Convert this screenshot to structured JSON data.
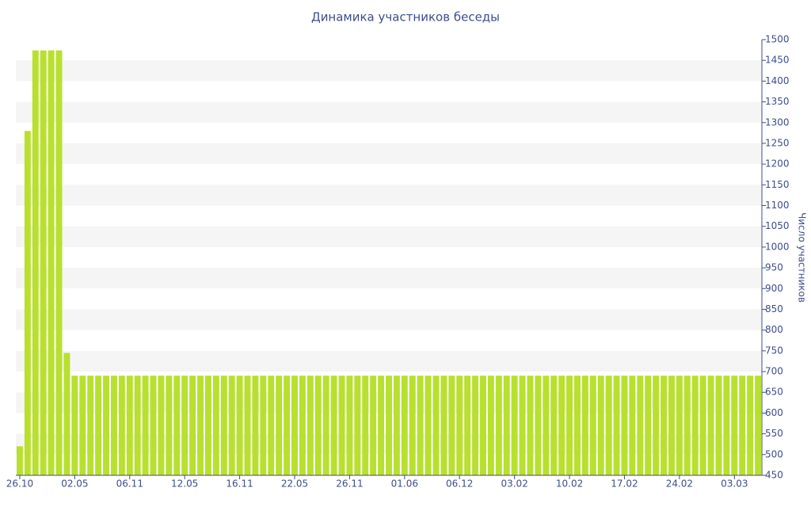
{
  "chart_data": {
    "type": "bar",
    "title": "Динамика участников беседы",
    "y_label": "Число участников",
    "categories": [
      "26.10",
      null,
      null,
      null,
      null,
      null,
      null,
      "02.05",
      null,
      null,
      null,
      null,
      null,
      null,
      "06.11",
      null,
      null,
      null,
      null,
      null,
      null,
      "12.05",
      null,
      null,
      null,
      null,
      null,
      null,
      "16.11",
      null,
      null,
      null,
      null,
      null,
      null,
      "22.05",
      null,
      null,
      null,
      null,
      null,
      null,
      "26.11",
      null,
      null,
      null,
      null,
      null,
      null,
      "01.06",
      null,
      null,
      null,
      null,
      null,
      null,
      "06.12",
      null,
      null,
      null,
      null,
      null,
      null,
      "03.02",
      null,
      null,
      null,
      null,
      null,
      null,
      "10.02",
      null,
      null,
      null,
      null,
      null,
      null,
      "17.02",
      null,
      null,
      null,
      null,
      null,
      null,
      "24.02",
      null,
      null,
      null,
      null,
      null,
      null,
      "03.03",
      null,
      null,
      null
    ],
    "values": [
      520,
      1280,
      1474,
      1474,
      1474,
      1474,
      745,
      690,
      690,
      690,
      690,
      690,
      690,
      690,
      690,
      690,
      690,
      690,
      690,
      690,
      690,
      690,
      690,
      690,
      690,
      690,
      690,
      690,
      690,
      690,
      690,
      690,
      690,
      690,
      690,
      690,
      690,
      690,
      690,
      690,
      690,
      690,
      690,
      690,
      690,
      690,
      690,
      690,
      690,
      690,
      690,
      690,
      690,
      690,
      690,
      690,
      690,
      690,
      690,
      690,
      690,
      690,
      690,
      690,
      690,
      690,
      690,
      690,
      690,
      690,
      690,
      690,
      690,
      690,
      690,
      690,
      690,
      690,
      690,
      690,
      690,
      690,
      690,
      690,
      690,
      690,
      690,
      690,
      690,
      690,
      690,
      690,
      690,
      690,
      690
    ],
    "color": "#b8e02e",
    "ylim": [
      450,
      1500
    ],
    "yticks": [
      450,
      500,
      550,
      600,
      650,
      700,
      750,
      800,
      850,
      900,
      950,
      1000,
      1050,
      1100,
      1150,
      1200,
      1250,
      1300,
      1350,
      1400,
      1450,
      1500
    ],
    "y_axis_side": "right",
    "grid": true
  }
}
